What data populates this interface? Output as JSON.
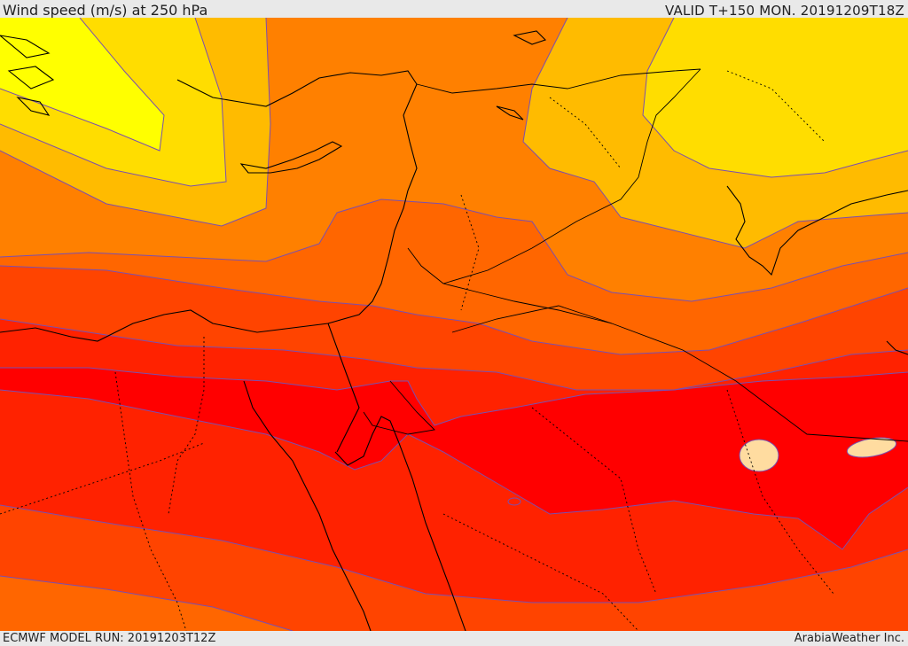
{
  "header": {
    "title": "Wind speed (m/s) at 250 hPa",
    "valid": "VALID T+150 MON. 20191209T18Z"
  },
  "footer": {
    "model_run": "ECMWF MODEL RUN: 20191203T12Z",
    "credit": "ArabiaWeather Inc."
  },
  "map": {
    "variable": "wind speed",
    "units": "m/s",
    "pressure_level": "250 hPa",
    "colors": {
      "lowest": "#ffff00",
      "low": "#ffdd00",
      "mid_low": "#ffbb00",
      "mid": "#ff9900",
      "mid_high": "#ff8000",
      "high": "#ff6600",
      "higher": "#ff4400",
      "very_high": "#ff2200",
      "max": "#ff0000",
      "peak": "#ffdca0",
      "contour": "#7a4fb0",
      "border": "#000000"
    }
  }
}
